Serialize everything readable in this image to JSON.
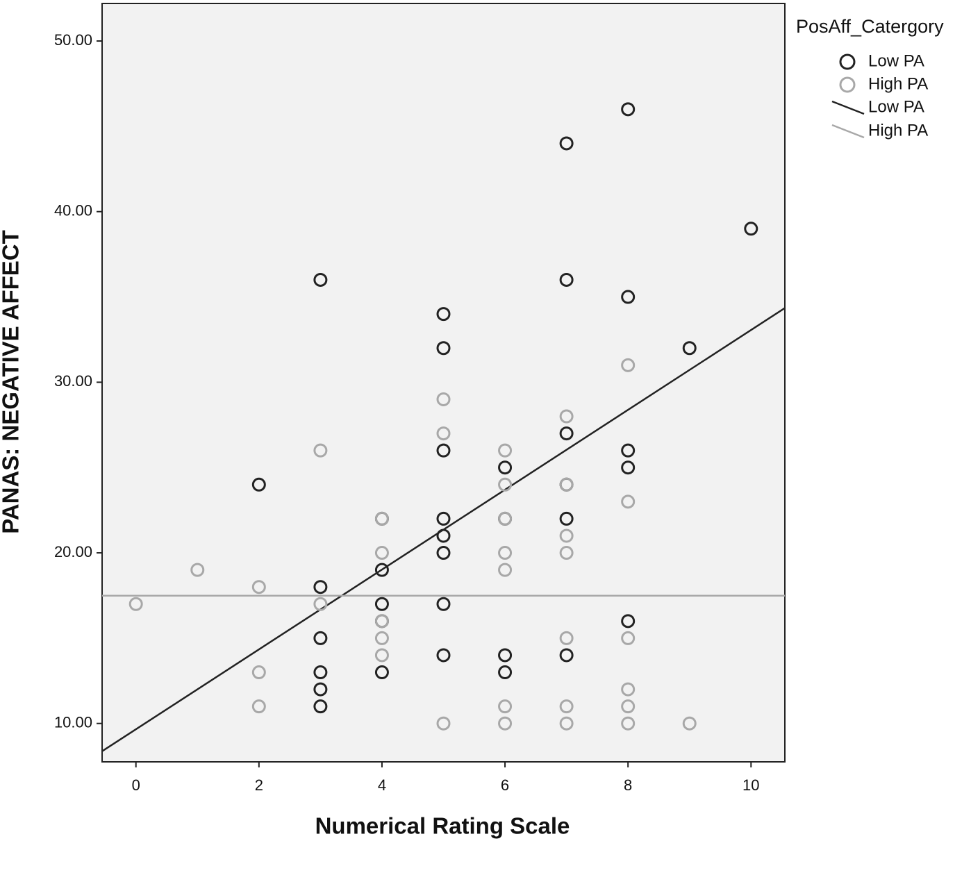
{
  "chart_data": {
    "type": "scatter",
    "xlabel": "Numerical Rating Scale",
    "ylabel": "PANAS: NEGATIVE AFFECT",
    "legend_title": "PosAff_Catergory",
    "xlim": [
      -0.55,
      10.55
    ],
    "ylim": [
      7.75,
      52.2
    ],
    "xticks": [
      0,
      2,
      4,
      6,
      8,
      10
    ],
    "yticks": [
      {
        "value": 10,
        "label": "10.00"
      },
      {
        "value": 20,
        "label": "20.00"
      },
      {
        "value": 30,
        "label": "30.00"
      },
      {
        "value": 40,
        "label": "40.00"
      },
      {
        "value": 50,
        "label": "50.00"
      }
    ],
    "series": [
      {
        "name": "Low PA",
        "color": "#222222",
        "x": [
          2,
          3,
          3,
          3,
          3,
          3,
          3,
          4,
          4,
          4,
          4,
          4,
          5,
          5,
          5,
          5,
          5,
          5,
          5,
          5,
          6,
          6,
          6,
          6,
          7,
          7,
          7,
          7,
          7,
          7,
          8,
          8,
          8,
          8,
          8,
          9,
          10
        ],
        "values": [
          24,
          36,
          18,
          15,
          13,
          12,
          11,
          22,
          19,
          17,
          16,
          13,
          34,
          32,
          26,
          22,
          21,
          20,
          17,
          14,
          25,
          22,
          14,
          13,
          44,
          36,
          27,
          24,
          22,
          14,
          46,
          35,
          26,
          25,
          16,
          32,
          39
        ]
      },
      {
        "name": "High PA",
        "color": "#a8a8a8",
        "x": [
          0,
          1,
          2,
          2,
          2,
          3,
          3,
          4,
          4,
          4,
          4,
          4,
          5,
          5,
          5,
          6,
          6,
          6,
          6,
          6,
          6,
          6,
          7,
          7,
          7,
          7,
          7,
          7,
          7,
          8,
          8,
          8,
          8,
          8,
          8,
          9
        ],
        "values": [
          17,
          19,
          18,
          13,
          11,
          26,
          17,
          22,
          20,
          16,
          15,
          14,
          29,
          27,
          10,
          26,
          24,
          22,
          20,
          19,
          11,
          10,
          28,
          24,
          21,
          20,
          15,
          11,
          10,
          31,
          23,
          15,
          12,
          11,
          10,
          10
        ]
      }
    ],
    "fit_lines": [
      {
        "name": "Low PA",
        "color": "#222222",
        "intercept": 9.66,
        "slope": 2.34
      },
      {
        "name": "High PA",
        "color": "#a8a8a8",
        "intercept": 17.49,
        "slope": 0
      }
    ]
  }
}
